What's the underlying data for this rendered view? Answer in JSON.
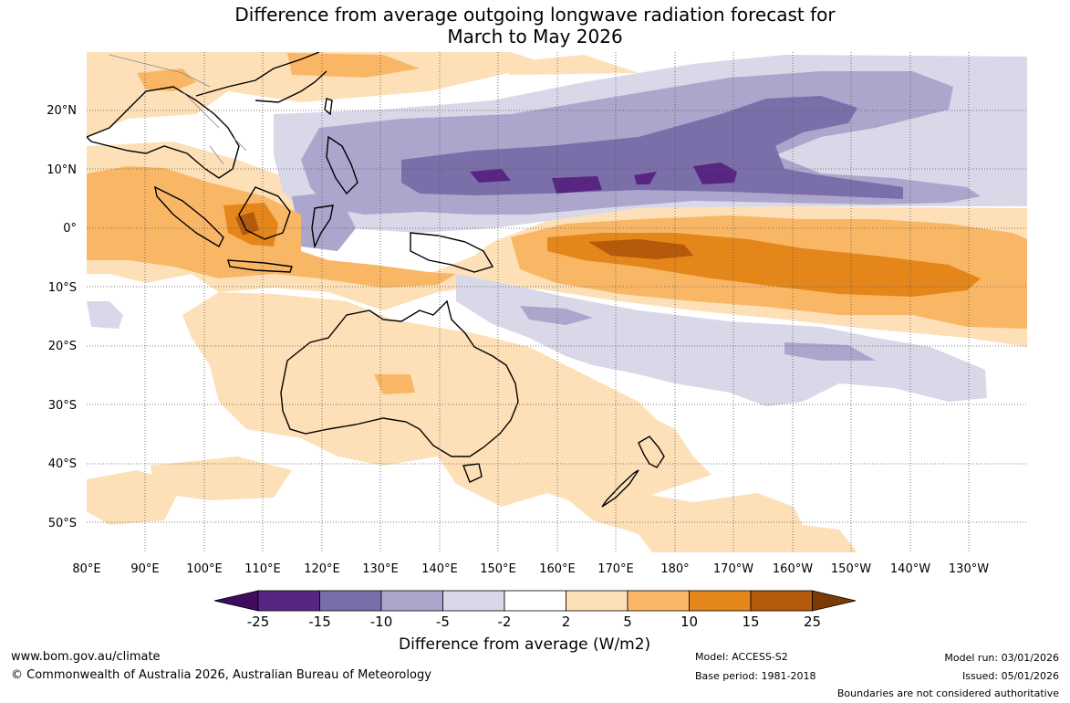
{
  "title": {
    "line1": "Difference from average outgoing longwave radiation forecast for",
    "line2": "March to May 2026"
  },
  "map": {
    "latitude_labels": [
      "20°N",
      "10°N",
      "0°",
      "10°S",
      "20°S",
      "30°S",
      "40°S",
      "50°S"
    ],
    "longitude_labels": [
      "80°E",
      "90°E",
      "100°E",
      "110°E",
      "120°E",
      "130°E",
      "140°E",
      "150°E",
      "160°E",
      "170°E",
      "180°",
      "170°W",
      "160°W",
      "150°W",
      "140°W",
      "130°W"
    ],
    "colors": {
      "purple_25": "#3f0b5e",
      "purple_15": "#582583",
      "purple_10": "#7b6fa9",
      "purple_5": "#aca6cd",
      "purple_2": "#d9d8e9",
      "neutral": "#ffffff",
      "orange_2": "#fde0b7",
      "orange_5": "#f9b766",
      "orange_10": "#e5861a",
      "orange_15": "#b45a0a",
      "orange_25": "#7c3a05",
      "land_outline": "#000000",
      "grid": "#555555"
    }
  },
  "colorbar": {
    "title": "Difference from average (W/m2)",
    "tick_labels": [
      "-25",
      "-15",
      "-10",
      "-5",
      "-2",
      "2",
      "5",
      "10",
      "15",
      "25"
    ]
  },
  "footer": {
    "website": "www.bom.gov.au/climate",
    "copyright": "© Commonwealth of Australia 2026, Australian Bureau of Meteorology",
    "model": "Model: ACCESS-S2",
    "base_period": "Base period: 1981-2018",
    "model_run": "Model run: 03/01/2026",
    "issued": "Issued: 05/01/2026",
    "disclaimer": "Boundaries are not considered authoritative"
  }
}
